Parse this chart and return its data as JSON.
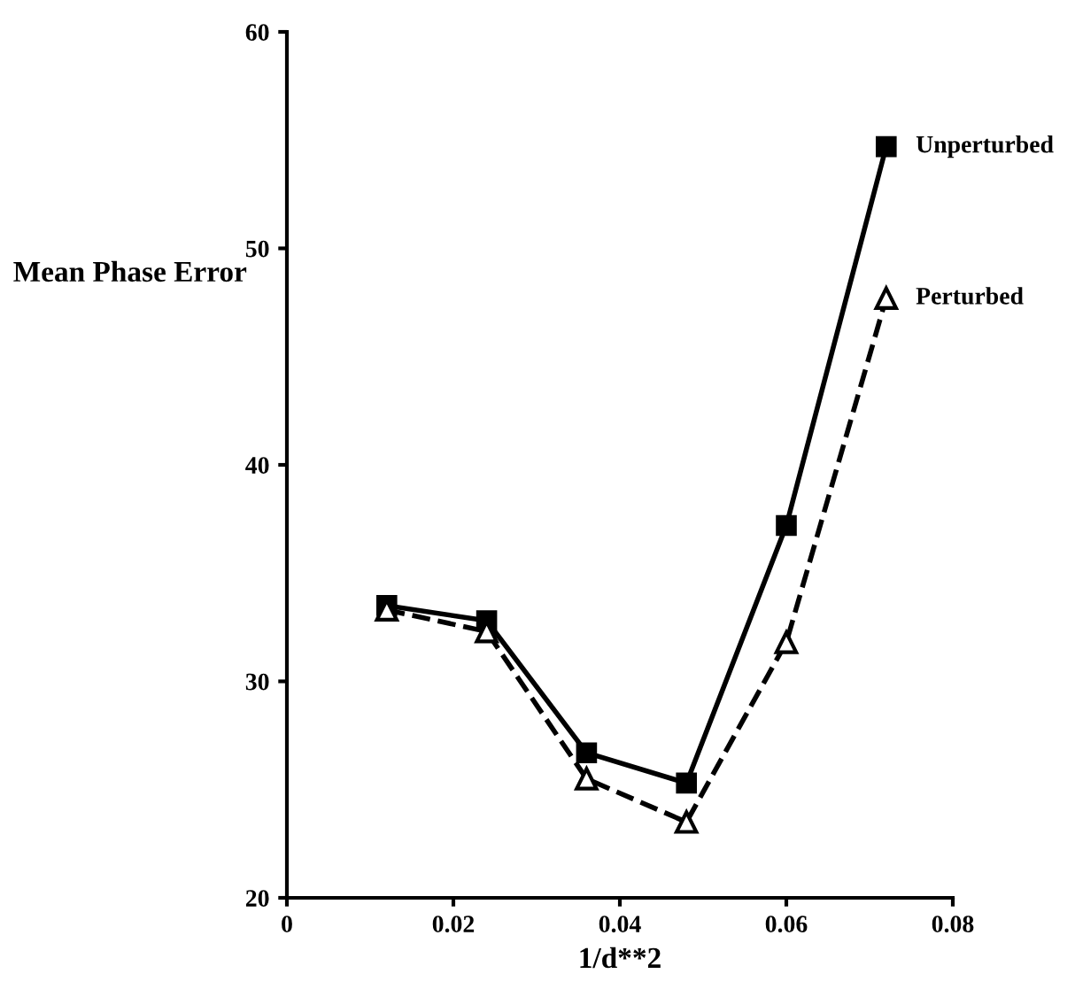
{
  "chart_data": {
    "type": "line",
    "xlabel": "1/d**2",
    "ylabel": "Mean Phase Error",
    "x": [
      0.012,
      0.024,
      0.036,
      0.048,
      0.06,
      0.072
    ],
    "series": [
      {
        "name": "Unperturbed",
        "color": "#000000",
        "values": [
          33.5,
          32.8,
          26.7,
          25.3,
          37.2,
          54.7
        ],
        "marker": "square",
        "line_style": "solid"
      },
      {
        "name": "Perturbed",
        "color": "#000000",
        "values": [
          33.3,
          32.3,
          25.5,
          23.5,
          31.8,
          47.7
        ],
        "marker": "triangle",
        "line_style": "dashed"
      }
    ],
    "xlim": [
      0,
      0.08
    ],
    "xticks": [
      0,
      0.02,
      0.04,
      0.06,
      0.08
    ],
    "ylim": [
      20,
      60
    ],
    "yticks": [
      20,
      30,
      40,
      50,
      60
    ],
    "grid": false,
    "legend": false
  }
}
